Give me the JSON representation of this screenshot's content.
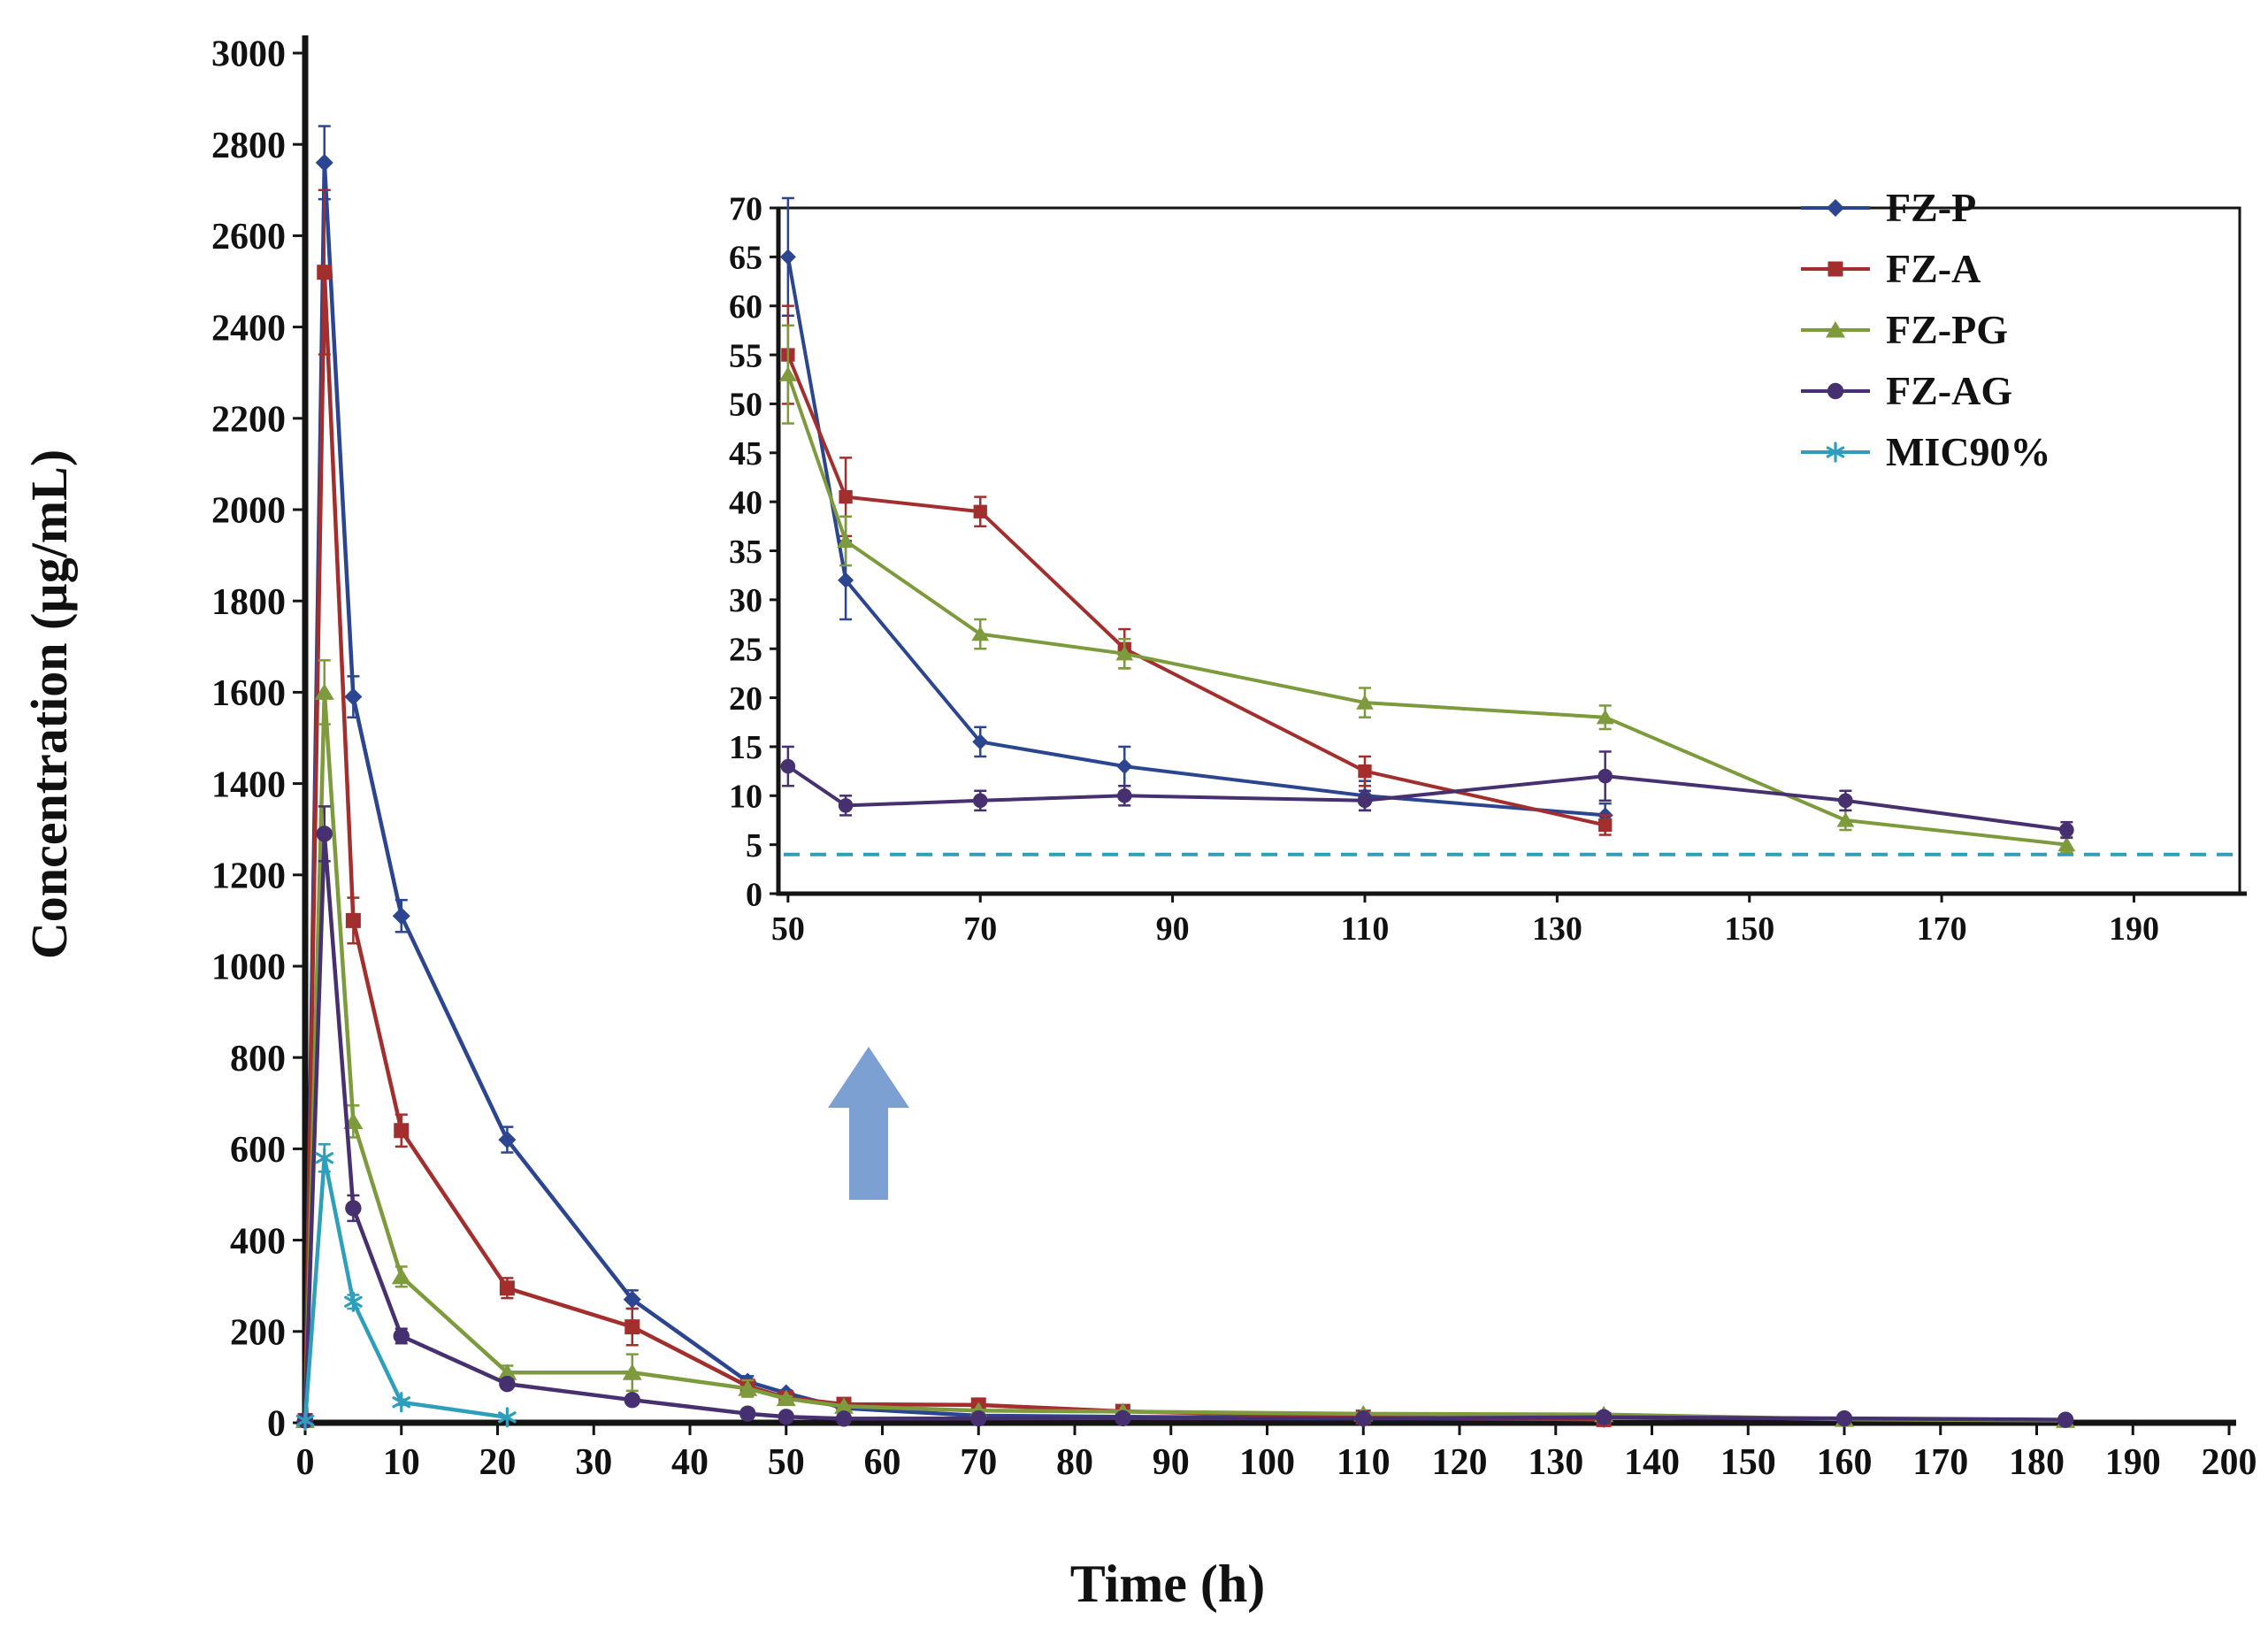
{
  "chart_data": {
    "type": "line",
    "title": "",
    "xlabel": "Time (h)",
    "ylabel": "Concentration (µg/mL)",
    "main_axis": {
      "xlim": [
        0,
        200
      ],
      "xtick_step": 10,
      "ylim": [
        0,
        3000
      ],
      "ytick_step": 200
    },
    "inset_axis": {
      "xlim": [
        49,
        201
      ],
      "ylim": [
        0,
        70
      ],
      "xticks": [
        50,
        70,
        90,
        110,
        130,
        150,
        170,
        190
      ],
      "ytick_step": 5
    },
    "mic_reference_value": 4,
    "legend": {
      "position": "upper right",
      "entries": [
        "FZ-P",
        "FZ-A",
        "FZ-PG",
        "FZ-AG",
        "MIC90%"
      ]
    },
    "series": [
      {
        "name": "FZ-P",
        "color": "#2b4590",
        "marker": "diamond",
        "x": [
          0,
          2,
          5,
          10,
          21,
          34,
          46,
          50,
          56,
          70,
          85,
          110,
          135
        ],
        "y": [
          5,
          2760,
          1590,
          1110,
          620,
          270,
          90,
          65,
          32,
          15.5,
          13,
          10,
          8
        ],
        "err": [
          0,
          80,
          45,
          35,
          28,
          20,
          12,
          6,
          4,
          1.5,
          2,
          1.5,
          1.2
        ]
      },
      {
        "name": "FZ-A",
        "color": "#a32e2e",
        "marker": "square",
        "x": [
          0,
          2,
          5,
          10,
          21,
          34,
          46,
          50,
          56,
          70,
          85,
          110,
          135
        ],
        "y": [
          5,
          2520,
          1100,
          640,
          295,
          210,
          80,
          55,
          40.5,
          39,
          25,
          12.5,
          7
        ],
        "err": [
          0,
          180,
          50,
          35,
          22,
          40,
          12,
          5,
          4,
          1.5,
          2,
          1.5,
          1
        ]
      },
      {
        "name": "FZ-PG",
        "color": "#7d9b3c",
        "marker": "triangle",
        "x": [
          0,
          2,
          5,
          10,
          21,
          34,
          46,
          50,
          56,
          70,
          85,
          110,
          135,
          160,
          183
        ],
        "y": [
          5,
          1600,
          660,
          320,
          110,
          110,
          75,
          53,
          36,
          26.5,
          24.5,
          19.5,
          18,
          7.5,
          5
        ],
        "err": [
          0,
          70,
          35,
          22,
          15,
          40,
          18,
          5,
          2.5,
          1.5,
          1.5,
          1.5,
          1.2,
          1,
          0.8
        ]
      },
      {
        "name": "FZ-AG",
        "color": "#473070",
        "marker": "circle",
        "x": [
          0,
          2,
          5,
          10,
          21,
          34,
          46,
          50,
          56,
          70,
          85,
          110,
          135,
          160,
          183
        ],
        "y": [
          5,
          1290,
          470,
          190,
          85,
          50,
          20,
          13,
          9,
          9.5,
          10,
          9.5,
          12,
          9.5,
          6.5
        ],
        "err": [
          0,
          60,
          28,
          16,
          10,
          8,
          5,
          2,
          1,
          1,
          1,
          1,
          2.5,
          1,
          0.8
        ]
      },
      {
        "name": "MIC90%",
        "color": "#2e9fba",
        "marker": "asterisk",
        "x": [
          0,
          2,
          5,
          10,
          21
        ],
        "y": [
          5,
          580,
          265,
          45,
          12
        ],
        "err": [
          0,
          30,
          15,
          6,
          2
        ]
      }
    ],
    "annotations": {
      "inset_pointer": "up-arrow"
    }
  }
}
